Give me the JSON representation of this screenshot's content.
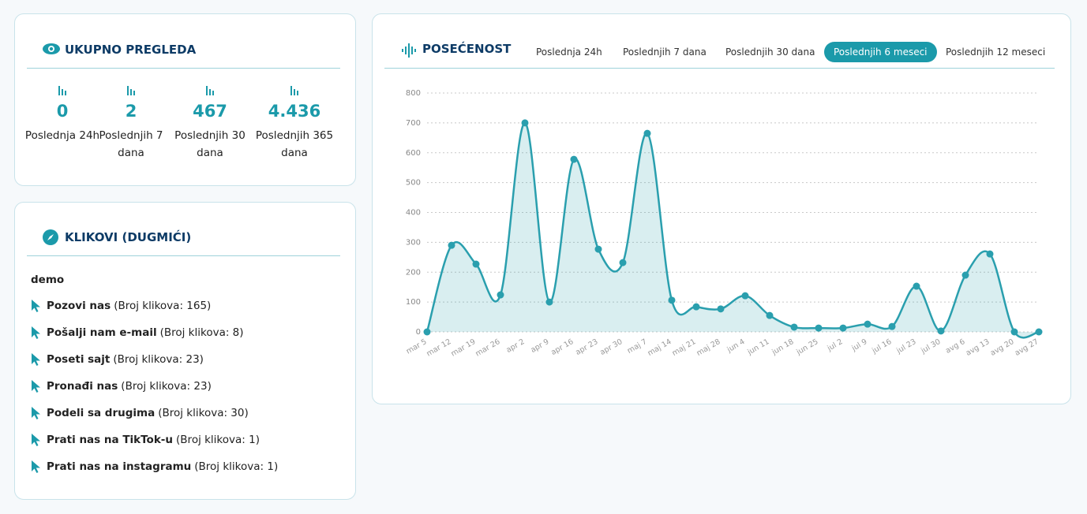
{
  "views": {
    "title": "UKUPNO PREGLEDA",
    "stats": [
      {
        "value": "0",
        "label": "Poslednja 24h"
      },
      {
        "value": "2",
        "label": "Poslednjih 7 dana"
      },
      {
        "value": "467",
        "label": "Poslednjih 30 dana"
      },
      {
        "value": "4.436",
        "label": "Poslednjih 365 dana"
      }
    ]
  },
  "clicks": {
    "title": "KLIKOVI (DUGMIĆI)",
    "group": "demo",
    "items": [
      {
        "name": "Pozovi nas",
        "count": "(Broj klikova: 165)"
      },
      {
        "name": "Pošalji nam e-mail",
        "count": "(Broj klikova: 8)"
      },
      {
        "name": "Poseti sajt",
        "count": "(Broj klikova: 23)"
      },
      {
        "name": "Pronađi nas",
        "count": "(Broj klikova: 23)"
      },
      {
        "name": "Podeli sa drugima",
        "count": "(Broj klikova: 30)"
      },
      {
        "name": "Prati nas na TikTok-u",
        "count": "(Broj klikova: 1)"
      },
      {
        "name": "Prati nas na instagramu",
        "count": "(Broj klikova: 1)"
      }
    ]
  },
  "tabs": {
    "items": [
      "Poslednja 24h",
      "Poslednjih 7 dana",
      "Poslednjih 30 dana",
      "Poslednjih 6 meseci",
      "Poslednjih 12 meseci"
    ],
    "active": 3
  },
  "chart_data": {
    "type": "line",
    "title": "POSEĆENOST",
    "categories": [
      "mar 5",
      "mar 12",
      "mar 19",
      "mar 26",
      "apr 2",
      "apr 9",
      "apr 16",
      "apr 23",
      "apr 30",
      "maj 7",
      "maj 14",
      "maj 21",
      "maj 28",
      "jun 4",
      "jun 11",
      "jun 18",
      "jun 25",
      "jul 2",
      "jul 9",
      "jul 16",
      "jul 23",
      "jul 30",
      "avg 6",
      "avg 13",
      "avg 20",
      "avg 27"
    ],
    "values": [
      0,
      290,
      227,
      124,
      700,
      100,
      578,
      277,
      232,
      665,
      106,
      84,
      77,
      121,
      55,
      16,
      13,
      13,
      26,
      18,
      153,
      3,
      190,
      261,
      0,
      0
    ],
    "color": "#2a9fae",
    "ylim": [
      0,
      800
    ],
    "yticks": [
      0,
      100,
      200,
      300,
      400,
      500,
      600,
      700,
      800
    ],
    "grid": true
  }
}
